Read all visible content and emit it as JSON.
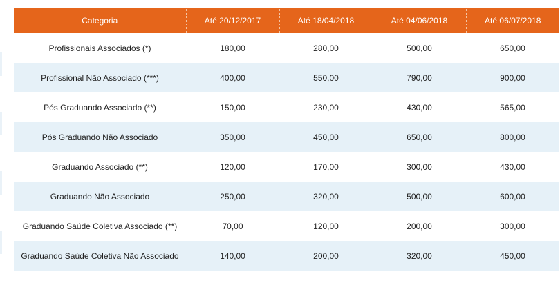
{
  "table": {
    "headers": [
      "Categoria",
      "Até 20/12/2017",
      "Até 18/04/2018",
      "Até 04/06/2018",
      "Até 06/07/2018"
    ],
    "rows": [
      [
        "Profissionais Associados (*)",
        "180,00",
        "280,00",
        "500,00",
        "650,00"
      ],
      [
        "Profissional Não Associado (***)",
        "400,00",
        "550,00",
        "790,00",
        "900,00"
      ],
      [
        "Pós Graduando Associado (**)",
        "150,00",
        "230,00",
        "430,00",
        "565,00"
      ],
      [
        "Pós Graduando Não Associado",
        "350,00",
        "450,00",
        "650,00",
        "800,00"
      ],
      [
        "Graduando Associado (**)",
        "120,00",
        "170,00",
        "300,00",
        "430,00"
      ],
      [
        "Graduando Não Associado",
        "250,00",
        "320,00",
        "500,00",
        "600,00"
      ],
      [
        "Graduando Saúde Coletiva Associado (**)",
        "70,00",
        "120,00",
        "200,00",
        "300,00"
      ],
      [
        "Graduando Saúde Coletiva Não Associado",
        "140,00",
        "200,00",
        "320,00",
        "450,00"
      ]
    ]
  },
  "colors": {
    "header_bg": "#e5651b",
    "header_text": "#ffffff",
    "stripe_bg": "#e6f1f8"
  }
}
